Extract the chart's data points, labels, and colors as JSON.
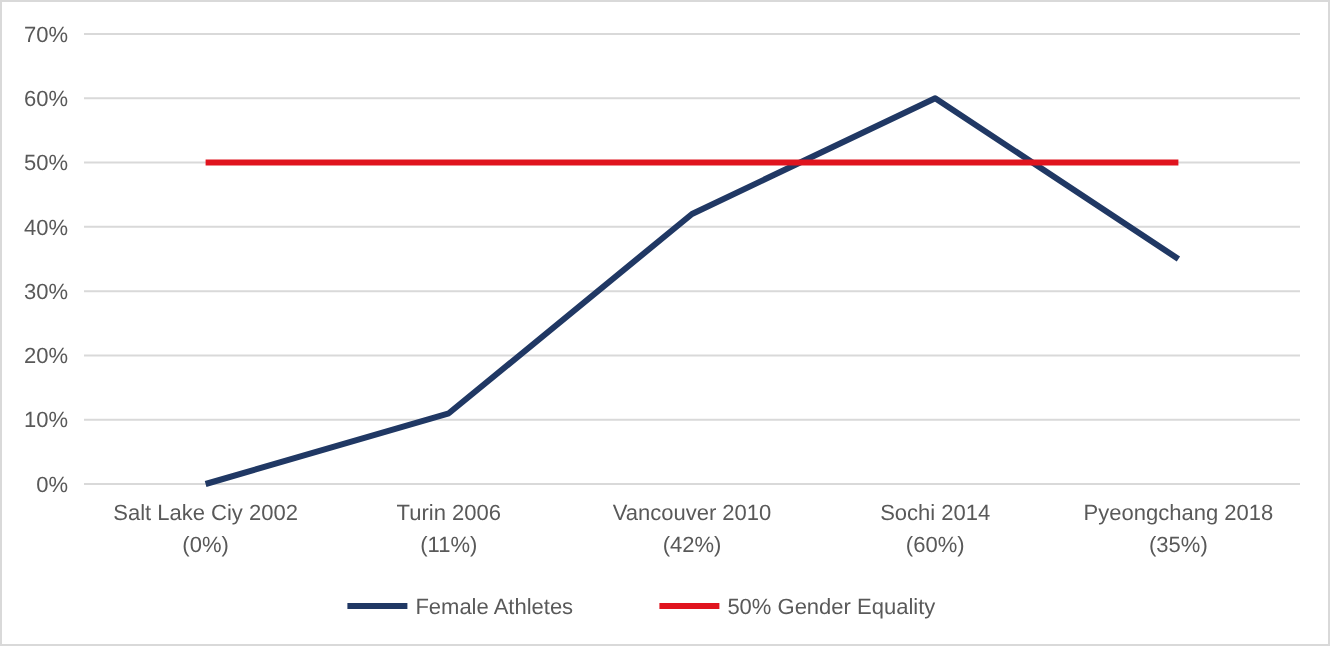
{
  "chart_data": {
    "type": "line",
    "categories": [
      "Salt Lake Ciy 2002\n(0%)",
      "Turin 2006\n(11%)",
      "Vancouver 2010\n(42%)",
      "Sochi 2014\n(60%)",
      "Pyeongchang 2018\n(35%)"
    ],
    "series": [
      {
        "name": "Female Athletes",
        "color": "#203864",
        "values": [
          0,
          11,
          42,
          60,
          35
        ]
      },
      {
        "name": "50% Gender Equality",
        "color": "#e0141e",
        "values": [
          50,
          50,
          50,
          50,
          50
        ]
      }
    ],
    "ylim": [
      0,
      70
    ],
    "yticks": [
      {
        "value": 0,
        "label": "0%"
      },
      {
        "value": 10,
        "label": "10%"
      },
      {
        "value": 20,
        "label": "20%"
      },
      {
        "value": 30,
        "label": "30%"
      },
      {
        "value": 40,
        "label": "40%"
      },
      {
        "value": 50,
        "label": "50%"
      },
      {
        "value": 60,
        "label": "60%"
      },
      {
        "value": 70,
        "label": "70%"
      }
    ],
    "grid": "y",
    "legend": "bottom",
    "marker": "none",
    "line_style": "solid"
  }
}
